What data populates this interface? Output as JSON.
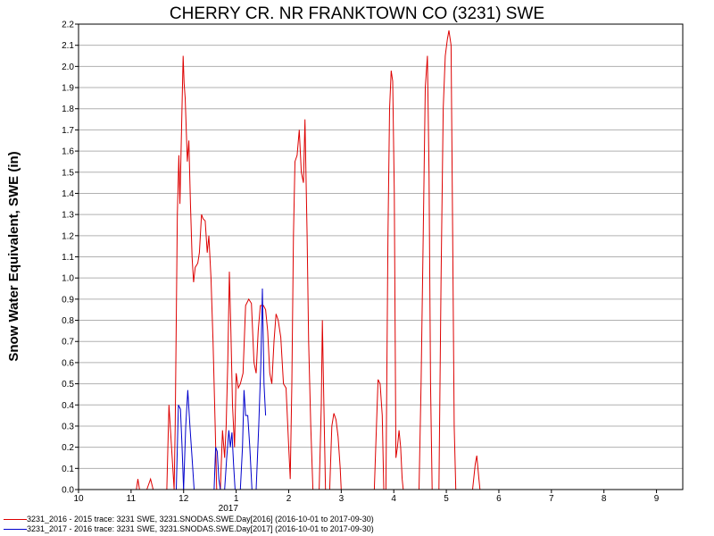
{
  "chart_data": {
    "type": "line",
    "title": "CHERRY CR. NR FRANKTOWN CO (3231) SWE",
    "ylabel": "Snow Water Equivalent, SWE (in)",
    "xlabel": "",
    "ylim": [
      0,
      2.2
    ],
    "yticks": [
      "0.0",
      "0.1",
      "0.2",
      "0.3",
      "0.4",
      "0.5",
      "0.6",
      "0.7",
      "0.8",
      "0.9",
      "1.0",
      "1.1",
      "1.2",
      "1.3",
      "1.4",
      "1.5",
      "1.6",
      "1.7",
      "1.8",
      "1.9",
      "2.0",
      "2.1",
      "2.2"
    ],
    "xlim": [
      10.0,
      21.5
    ],
    "xticks": [
      {
        "x": 10,
        "label": "10"
      },
      {
        "x": 11,
        "label": "11"
      },
      {
        "x": 12,
        "label": "12"
      },
      {
        "x": 13,
        "label": "1"
      },
      {
        "x": 14,
        "label": "2"
      },
      {
        "x": 15,
        "label": "3"
      },
      {
        "x": 16,
        "label": "4"
      },
      {
        "x": 17,
        "label": "5"
      },
      {
        "x": 18,
        "label": "6"
      },
      {
        "x": 19,
        "label": "7"
      },
      {
        "x": 20,
        "label": "8"
      },
      {
        "x": 21,
        "label": "9"
      }
    ],
    "year_label": "2017",
    "year_label_x": 12.85,
    "grid": "horizontal",
    "legend_position": "bottom-left",
    "series": [
      {
        "name": "3231_2016 - 2015 trace: 3231 SWE, 3231.SNODAS.SWE.Day[2016] (2016-10-01 to 2017-09-30)",
        "color": "#dd0000",
        "segments": [
          [
            [
              11.1,
              0
            ],
            [
              11.13,
              0.05
            ],
            [
              11.16,
              0
            ]
          ],
          [
            [
              11.3,
              0
            ],
            [
              11.37,
              0.05
            ],
            [
              11.42,
              0
            ]
          ],
          [
            [
              11.68,
              0
            ],
            [
              11.72,
              0.4
            ],
            [
              11.77,
              0.2
            ],
            [
              11.82,
              0
            ],
            [
              11.84,
              0.3
            ],
            [
              11.88,
              1.3
            ],
            [
              11.91,
              1.58
            ],
            [
              11.93,
              1.35
            ],
            [
              11.96,
              1.7
            ],
            [
              11.99,
              2.05
            ],
            [
              12.01,
              1.92
            ],
            [
              12.03,
              1.85
            ],
            [
              12.07,
              1.55
            ],
            [
              12.1,
              1.65
            ],
            [
              12.13,
              1.35
            ],
            [
              12.16,
              1.1
            ],
            [
              12.19,
              0.98
            ],
            [
              12.22,
              1.05
            ],
            [
              12.27,
              1.07
            ],
            [
              12.3,
              1.12
            ],
            [
              12.34,
              1.3
            ],
            [
              12.37,
              1.28
            ],
            [
              12.41,
              1.27
            ],
            [
              12.45,
              1.12
            ],
            [
              12.48,
              1.2
            ],
            [
              12.52,
              1.0
            ],
            [
              12.56,
              0.7
            ],
            [
              12.6,
              0.3
            ],
            [
              12.63,
              0
            ]
          ],
          [
            [
              12.7,
              0
            ],
            [
              12.74,
              0.28
            ],
            [
              12.78,
              0.15
            ],
            [
              12.81,
              0.3
            ],
            [
              12.84,
              0.6
            ],
            [
              12.87,
              1.03
            ],
            [
              12.9,
              0.75
            ],
            [
              12.93,
              0.4
            ],
            [
              12.97,
              0.2
            ],
            [
              13.0,
              0.55
            ],
            [
              13.04,
              0.48
            ],
            [
              13.08,
              0.5
            ],
            [
              13.13,
              0.55
            ],
            [
              13.18,
              0.87
            ],
            [
              13.24,
              0.9
            ],
            [
              13.29,
              0.88
            ],
            [
              13.34,
              0.6
            ],
            [
              13.38,
              0.55
            ],
            [
              13.42,
              0.75
            ],
            [
              13.46,
              0.87
            ],
            [
              13.52,
              0.87
            ],
            [
              13.56,
              0.85
            ],
            [
              13.6,
              0.75
            ],
            [
              13.64,
              0.55
            ],
            [
              13.68,
              0.5
            ],
            [
              13.72,
              0.7
            ],
            [
              13.76,
              0.83
            ],
            [
              13.8,
              0.8
            ],
            [
              13.85,
              0.72
            ],
            [
              13.9,
              0.5
            ],
            [
              13.95,
              0.48
            ],
            [
              14.0,
              0.2
            ],
            [
              14.03,
              0.05
            ],
            [
              14.06,
              0.5
            ],
            [
              14.09,
              1.2
            ],
            [
              14.12,
              1.55
            ],
            [
              14.16,
              1.58
            ],
            [
              14.2,
              1.7
            ],
            [
              14.24,
              1.5
            ],
            [
              14.28,
              1.45
            ],
            [
              14.31,
              1.75
            ],
            [
              14.35,
              1.2
            ],
            [
              14.38,
              0.7
            ],
            [
              14.42,
              0.3
            ],
            [
              14.46,
              0
            ]
          ],
          [
            [
              14.58,
              0
            ],
            [
              14.62,
              0.4
            ],
            [
              14.64,
              0.8
            ],
            [
              14.67,
              0.4
            ],
            [
              14.7,
              0
            ]
          ],
          [
            [
              14.78,
              0
            ],
            [
              14.82,
              0.3
            ],
            [
              14.86,
              0.36
            ],
            [
              14.9,
              0.33
            ],
            [
              14.94,
              0.25
            ],
            [
              14.98,
              0.1
            ],
            [
              15.0,
              0
            ]
          ],
          [
            [
              15.63,
              0
            ],
            [
              15.67,
              0.3
            ],
            [
              15.7,
              0.52
            ],
            [
              15.74,
              0.5
            ],
            [
              15.78,
              0.35
            ],
            [
              15.81,
              0
            ]
          ],
          [
            [
              15.85,
              0
            ],
            [
              15.89,
              1.2
            ],
            [
              15.92,
              1.8
            ],
            [
              15.95,
              1.98
            ],
            [
              15.98,
              1.93
            ],
            [
              16.01,
              1.4
            ],
            [
              16.04,
              0.15
            ],
            [
              16.07,
              0.2
            ],
            [
              16.1,
              0.28
            ],
            [
              16.13,
              0.2
            ],
            [
              16.16,
              0.05
            ],
            [
              16.18,
              0
            ]
          ],
          [
            [
              16.48,
              0
            ],
            [
              16.52,
              0.5
            ],
            [
              16.56,
              1.2
            ],
            [
              16.6,
              1.9
            ],
            [
              16.64,
              2.05
            ],
            [
              16.67,
              1.5
            ],
            [
              16.7,
              0.5
            ],
            [
              16.73,
              0
            ]
          ],
          [
            [
              16.86,
              0
            ],
            [
              16.9,
              1.0
            ],
            [
              16.94,
              1.8
            ],
            [
              16.98,
              2.05
            ],
            [
              17.02,
              2.13
            ],
            [
              17.05,
              2.17
            ],
            [
              17.09,
              2.1
            ],
            [
              17.12,
              1.2
            ],
            [
              17.15,
              0.3
            ],
            [
              17.18,
              0
            ]
          ],
          [
            [
              17.5,
              0
            ],
            [
              17.55,
              0.12
            ],
            [
              17.58,
              0.16
            ],
            [
              17.62,
              0.05
            ],
            [
              17.64,
              0
            ]
          ]
        ]
      },
      {
        "name": "3231_2017 - 2016 trace: 3231 SWE, 3231.SNODAS.SWE.Day[2017] (2016-10-01 to 2017-09-30)",
        "color": "#0000cc",
        "segments": [
          [
            [
              11.86,
              0
            ],
            [
              11.9,
              0.4
            ],
            [
              11.94,
              0.38
            ],
            [
              11.97,
              0.2
            ],
            [
              12.0,
              0
            ]
          ],
          [
            [
              12.0,
              0
            ],
            [
              12.04,
              0.3
            ],
            [
              12.08,
              0.47
            ],
            [
              12.12,
              0.3
            ],
            [
              12.16,
              0.15
            ],
            [
              12.2,
              0
            ]
          ],
          [
            [
              12.58,
              0
            ],
            [
              12.61,
              0.2
            ],
            [
              12.64,
              0.18
            ],
            [
              12.67,
              0.05
            ],
            [
              12.7,
              0
            ]
          ],
          [
            [
              12.78,
              0
            ],
            [
              12.82,
              0.15
            ],
            [
              12.86,
              0.28
            ],
            [
              12.89,
              0.2
            ],
            [
              12.92,
              0.27
            ],
            [
              12.95,
              0.12
            ],
            [
              12.98,
              0
            ]
          ],
          [
            [
              13.08,
              0
            ],
            [
              13.12,
              0.2
            ],
            [
              13.15,
              0.47
            ],
            [
              13.18,
              0.35
            ],
            [
              13.22,
              0.35
            ],
            [
              13.26,
              0.2
            ],
            [
              13.3,
              0
            ]
          ],
          [
            [
              13.38,
              0
            ],
            [
              13.43,
              0.3
            ],
            [
              13.47,
              0.6
            ],
            [
              13.5,
              0.95
            ],
            [
              13.53,
              0.5
            ],
            [
              13.56,
              0.35
            ]
          ]
        ]
      }
    ]
  }
}
